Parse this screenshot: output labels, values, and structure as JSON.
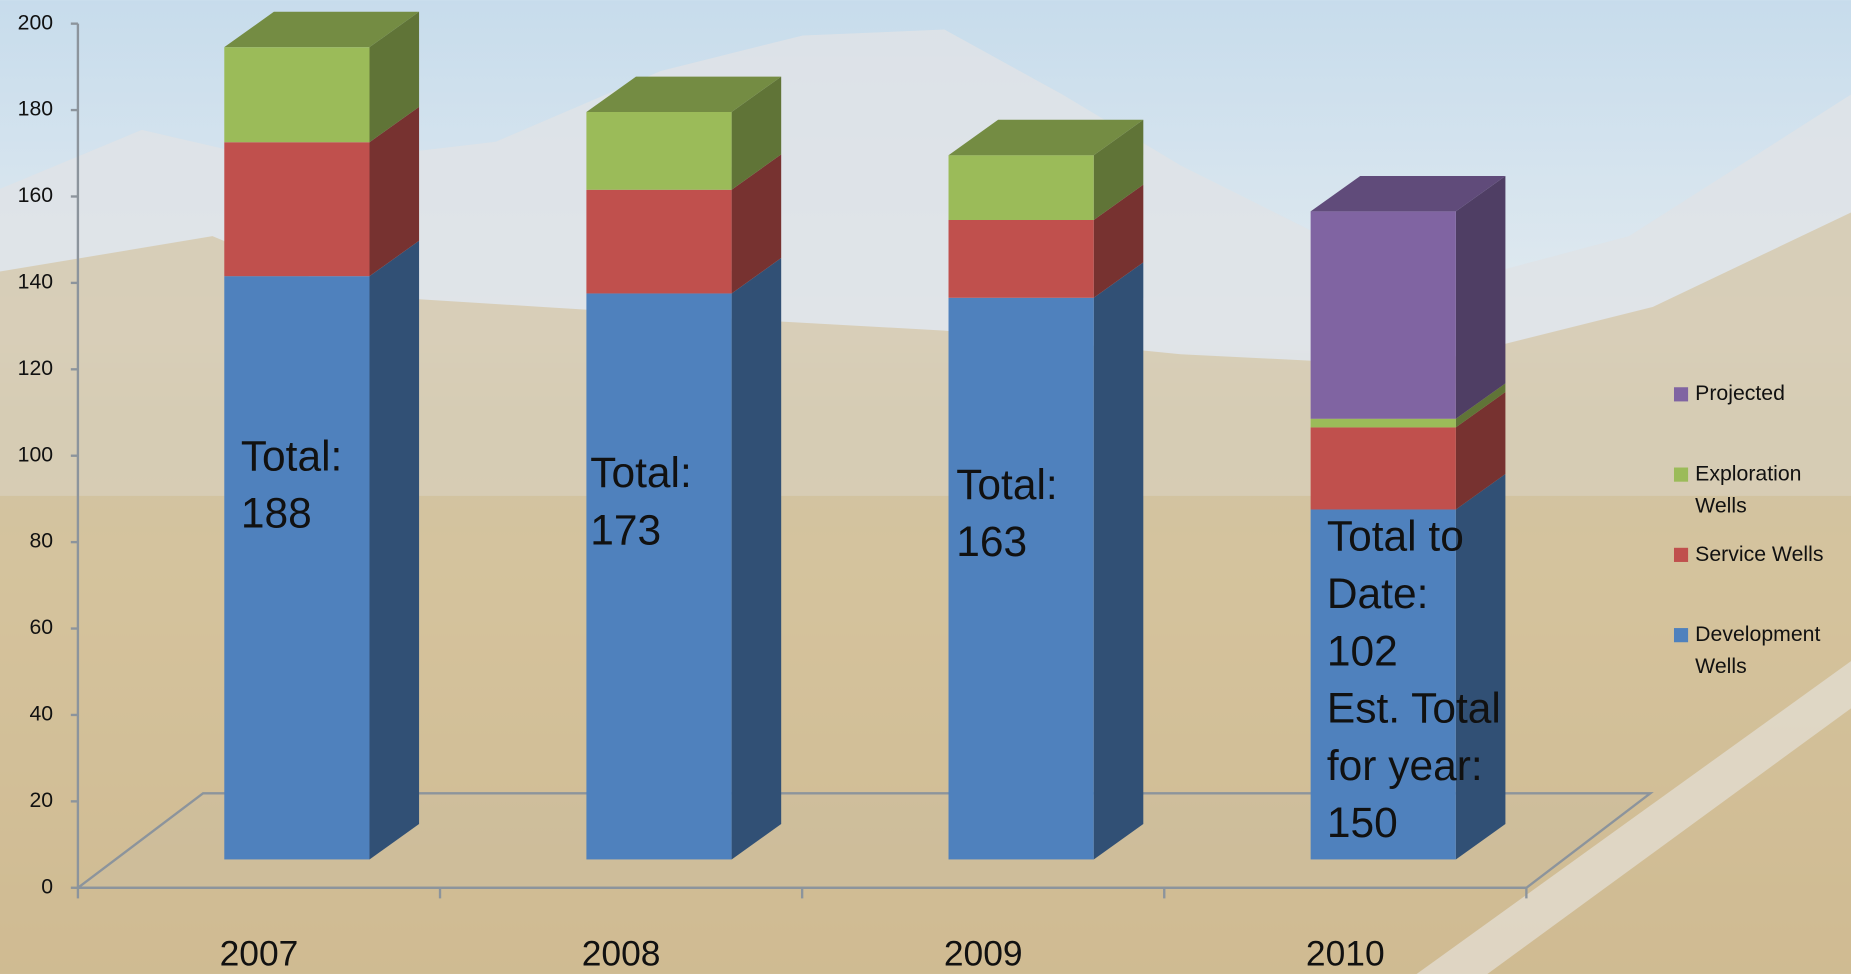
{
  "chart_data": {
    "type": "bar3d_stacked",
    "categories": [
      "2007",
      "2008",
      "2009",
      "2010"
    ],
    "series": [
      {
        "name": "Development Wells",
        "color": "#4f81bd",
        "values": [
          135,
          131,
          130,
          81
        ]
      },
      {
        "name": "Service Wells",
        "color": "#c0504d",
        "values": [
          31,
          24,
          18,
          19
        ]
      },
      {
        "name": "Exploration Wells",
        "color": "#9bbb59",
        "values": [
          22,
          18,
          15,
          2
        ]
      },
      {
        "name": "Projected",
        "color": "#8064a2",
        "values": [
          null,
          null,
          null,
          48
        ]
      }
    ],
    "ylim": [
      0,
      200
    ],
    "yticks": [
      0,
      20,
      40,
      60,
      80,
      100,
      120,
      140,
      160,
      180,
      200
    ],
    "legend": "right",
    "annotations": [
      {
        "lines": [
          "Total:",
          "188"
        ]
      },
      {
        "lines": [
          "Total:",
          "173"
        ]
      },
      {
        "lines": [
          "Total:",
          "163"
        ]
      },
      {
        "lines": [
          "Total to",
          "Date:",
          "102",
          "Est. Total",
          "for year:",
          "150"
        ]
      }
    ]
  }
}
